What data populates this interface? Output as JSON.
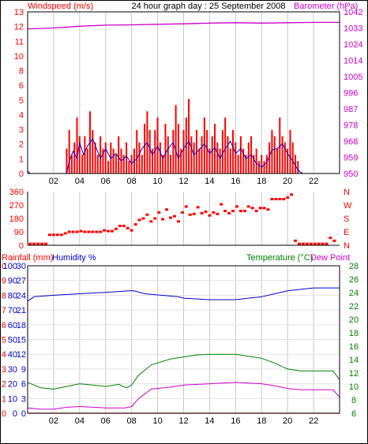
{
  "colors": {
    "red": "#ff0000",
    "blue": "#0000cc",
    "magenta": "#cc00cc",
    "green": "#008000",
    "grid": "#c8c8c8",
    "frame": "#000000"
  },
  "header": {
    "left_label": "Windspeed (m/s)",
    "title": "24 hour graph day : 25 September 2008",
    "right_label": "Barometer (hPa)"
  },
  "bottom_header": {
    "rainfall_label": "Rainfall (mm)",
    "humidity_label": "Humidity %",
    "temperature_label": "Temperature (°C)",
    "dewpoint_label": "Dew Point"
  },
  "chart_data": [
    {
      "id": "wind",
      "type": "line",
      "x_ticks": [
        "02",
        "04",
        "06",
        "08",
        "10",
        "12",
        "14",
        "16",
        "18",
        "20",
        "22"
      ],
      "xlim": [
        0,
        24
      ],
      "left_axis": {
        "label": "Windspeed (m/s)",
        "ticks": [
          "0",
          "1",
          "2",
          "3",
          "4",
          "5",
          "6",
          "8",
          "10",
          "11",
          "12",
          "13"
        ],
        "ylim": [
          0,
          13
        ]
      },
      "right_axis": {
        "label": "Barometer (hPa)",
        "ticks": [
          "950",
          "959",
          "968",
          "978",
          "987",
          "996",
          "1005",
          "1014",
          "1024",
          "1033",
          "1042"
        ],
        "ylim": [
          950,
          1042
        ]
      },
      "gust_bars_x": [
        3.0,
        3.2,
        3.4,
        3.6,
        3.8,
        4.0,
        4.2,
        4.4,
        4.6,
        4.8,
        5.0,
        5.2,
        5.4,
        5.6,
        5.8,
        6.0,
        6.2,
        6.4,
        6.6,
        6.8,
        7.0,
        7.2,
        7.4,
        7.6,
        7.8,
        8.0,
        8.2,
        8.4,
        8.6,
        8.8,
        9.0,
        9.2,
        9.4,
        9.6,
        9.8,
        10.0,
        10.2,
        10.4,
        10.6,
        10.8,
        11.0,
        11.2,
        11.4,
        11.6,
        11.8,
        12.0,
        12.2,
        12.4,
        12.6,
        12.8,
        13.0,
        13.2,
        13.4,
        13.6,
        13.8,
        14.0,
        14.2,
        14.4,
        14.6,
        14.8,
        15.0,
        15.2,
        15.4,
        15.6,
        15.8,
        16.0,
        16.2,
        16.4,
        16.6,
        16.8,
        17.0,
        17.2,
        17.4,
        17.6,
        17.8,
        18.0,
        18.2,
        18.4,
        18.6,
        18.8,
        19.0,
        19.2,
        19.4,
        19.6,
        19.8,
        20.0,
        20.2,
        20.4,
        20.6,
        20.8
      ],
      "gust_values": [
        2.0,
        3.5,
        1.5,
        2.5,
        4.5,
        3.0,
        1.5,
        3.0,
        2.0,
        5.0,
        3.5,
        2.5,
        1.5,
        3.0,
        2.0,
        2.5,
        1.0,
        2.5,
        2.0,
        1.5,
        3.0,
        2.0,
        1.5,
        2.5,
        1.0,
        1.5,
        2.0,
        3.5,
        2.5,
        1.5,
        4.0,
        5.0,
        3.5,
        2.0,
        3.5,
        4.5,
        2.5,
        1.5,
        4.0,
        3.0,
        1.5,
        3.5,
        5.5,
        4.0,
        2.0,
        3.5,
        4.5,
        6.0,
        3.0,
        2.5,
        3.5,
        2.0,
        3.0,
        4.5,
        3.5,
        2.0,
        3.0,
        4.0,
        2.5,
        2.0,
        3.5,
        4.5,
        3.0,
        2.0,
        3.5,
        2.5,
        1.5,
        3.0,
        2.0,
        1.5,
        2.5,
        3.0,
        1.5,
        2.0,
        1.0,
        1.5,
        1.0,
        1.5,
        2.5,
        3.5,
        3.0,
        2.0,
        4.5,
        3.0,
        2.5,
        2.0,
        3.5,
        2.5,
        1.5,
        1.0
      ],
      "wind_avg": [
        [
          0,
          0.2
        ],
        [
          0.2,
          0
        ],
        [
          3,
          0
        ],
        [
          3.2,
          1.0
        ],
        [
          3.5,
          1.8
        ],
        [
          3.8,
          1.2
        ],
        [
          4.0,
          2.5
        ],
        [
          4.3,
          1.5
        ],
        [
          4.6,
          2.2
        ],
        [
          5.0,
          2.8
        ],
        [
          5.3,
          2.0
        ],
        [
          5.6,
          1.2
        ],
        [
          6.0,
          2.0
        ],
        [
          6.4,
          1.2
        ],
        [
          6.8,
          1.6
        ],
        [
          7.2,
          1.0
        ],
        [
          7.6,
          1.4
        ],
        [
          8.0,
          0.8
        ],
        [
          8.4,
          1.2
        ],
        [
          8.8,
          2.0
        ],
        [
          9.2,
          2.5
        ],
        [
          9.6,
          1.5
        ],
        [
          10.0,
          2.2
        ],
        [
          10.4,
          1.2
        ],
        [
          10.8,
          2.0
        ],
        [
          11.2,
          2.5
        ],
        [
          11.6,
          1.2
        ],
        [
          12.0,
          2.0
        ],
        [
          12.4,
          2.6
        ],
        [
          12.8,
          1.5
        ],
        [
          13.2,
          1.9
        ],
        [
          13.6,
          2.4
        ],
        [
          14.0,
          1.6
        ],
        [
          14.4,
          2.1
        ],
        [
          14.8,
          1.2
        ],
        [
          15.2,
          2.0
        ],
        [
          15.6,
          2.6
        ],
        [
          16.0,
          1.6
        ],
        [
          16.4,
          2.0
        ],
        [
          16.8,
          1.2
        ],
        [
          17.2,
          1.5
        ],
        [
          17.6,
          0.8
        ],
        [
          18.0,
          0.5
        ],
        [
          18.4,
          0.9
        ],
        [
          18.8,
          1.9
        ],
        [
          19.2,
          2.0
        ],
        [
          19.6,
          2.4
        ],
        [
          20.0,
          1.6
        ],
        [
          20.4,
          1.0
        ],
        [
          20.8,
          0.3
        ],
        [
          21.0,
          0.1
        ],
        [
          21.2,
          0
        ]
      ],
      "barometer": [
        [
          0,
          1032.3
        ],
        [
          2,
          1032.8
        ],
        [
          4,
          1033.8
        ],
        [
          6,
          1034.4
        ],
        [
          8,
          1034.6
        ],
        [
          10,
          1034.9
        ],
        [
          12,
          1035.2
        ],
        [
          14,
          1035.6
        ],
        [
          16,
          1035.8
        ],
        [
          18,
          1035.6
        ],
        [
          20,
          1035.8
        ],
        [
          22,
          1036.0
        ],
        [
          24,
          1036.0
        ]
      ]
    },
    {
      "id": "direction",
      "type": "scatter",
      "x_ticks": [],
      "xlim": [
        0,
        24
      ],
      "left_axis": {
        "label": "",
        "ticks": [
          "0",
          "90",
          "180",
          "270",
          "360"
        ],
        "ylim": [
          0,
          360
        ]
      },
      "right_axis": {
        "label": "",
        "ticks": [
          "N",
          "E",
          "S",
          "W",
          "N"
        ],
        "ylim": [
          0,
          360
        ]
      },
      "points": [
        [
          0.2,
          10
        ],
        [
          0.5,
          10
        ],
        [
          0.8,
          10
        ],
        [
          1.1,
          10
        ],
        [
          1.4,
          10
        ],
        [
          1.7,
          70
        ],
        [
          2.0,
          70
        ],
        [
          2.3,
          70
        ],
        [
          2.6,
          70
        ],
        [
          2.9,
          80
        ],
        [
          3.2,
          90
        ],
        [
          3.5,
          90
        ],
        [
          3.8,
          90
        ],
        [
          4.1,
          95
        ],
        [
          4.4,
          90
        ],
        [
          4.7,
          90
        ],
        [
          5.0,
          90
        ],
        [
          5.3,
          90
        ],
        [
          5.6,
          90
        ],
        [
          5.9,
          100
        ],
        [
          6.2,
          95
        ],
        [
          6.5,
          95
        ],
        [
          6.8,
          110
        ],
        [
          7.1,
          130
        ],
        [
          7.4,
          130
        ],
        [
          7.7,
          115
        ],
        [
          8.0,
          100
        ],
        [
          8.3,
          140
        ],
        [
          8.6,
          170
        ],
        [
          8.9,
          180
        ],
        [
          9.2,
          205
        ],
        [
          9.5,
          160
        ],
        [
          9.8,
          180
        ],
        [
          10.1,
          220
        ],
        [
          10.4,
          175
        ],
        [
          10.7,
          240
        ],
        [
          11.0,
          185
        ],
        [
          11.3,
          195
        ],
        [
          11.6,
          160
        ],
        [
          11.9,
          220
        ],
        [
          12.2,
          260
        ],
        [
          12.5,
          205
        ],
        [
          12.8,
          210
        ],
        [
          13.1,
          255
        ],
        [
          13.4,
          215
        ],
        [
          13.7,
          225
        ],
        [
          14.0,
          200
        ],
        [
          14.3,
          220
        ],
        [
          14.6,
          210
        ],
        [
          14.9,
          275
        ],
        [
          15.2,
          230
        ],
        [
          15.5,
          215
        ],
        [
          15.8,
          230
        ],
        [
          16.1,
          260
        ],
        [
          16.4,
          230
        ],
        [
          16.7,
          230
        ],
        [
          17.0,
          260
        ],
        [
          17.3,
          250
        ],
        [
          17.6,
          230
        ],
        [
          17.9,
          250
        ],
        [
          18.2,
          250
        ],
        [
          18.5,
          240
        ],
        [
          18.8,
          310
        ],
        [
          19.1,
          310
        ],
        [
          19.4,
          310
        ],
        [
          19.7,
          310
        ],
        [
          20.0,
          320
        ],
        [
          20.3,
          340
        ],
        [
          20.6,
          30
        ],
        [
          20.9,
          10
        ],
        [
          21.2,
          10
        ],
        [
          21.5,
          10
        ],
        [
          21.8,
          10
        ],
        [
          22.1,
          10
        ],
        [
          22.4,
          10
        ],
        [
          22.7,
          10
        ],
        [
          23.0,
          10
        ],
        [
          23.3,
          50
        ],
        [
          23.6,
          30
        ]
      ]
    },
    {
      "id": "temp",
      "type": "line",
      "x_ticks": [
        "02",
        "04",
        "06",
        "08",
        "10",
        "12",
        "14",
        "16",
        "18",
        "20",
        "22"
      ],
      "xlim": [
        0,
        24
      ],
      "left_axis": {
        "label": "Rainfall (mm)",
        "ticks": [
          "0",
          "1",
          "2",
          "3",
          "4",
          "5",
          "6",
          "7",
          "8",
          "9",
          "10"
        ],
        "ylim": [
          0,
          10
        ]
      },
      "left2_axis": {
        "label": "Humidity %",
        "ticks": [
          "0",
          "10",
          "20",
          "30",
          "40",
          "50",
          "60",
          "70",
          "80",
          "90",
          "100"
        ],
        "ylim": [
          0,
          100
        ]
      },
      "left3_ticks": [
        "0",
        "3",
        "6",
        "9",
        "12",
        "15",
        "18",
        "21",
        "24",
        "27",
        "30"
      ],
      "right_axis": {
        "label": "Temperature (°C)",
        "ticks": [
          "6",
          "8",
          "10",
          "12",
          "14",
          "16",
          "18",
          "20",
          "22",
          "24",
          "26",
          "28"
        ],
        "ylim": [
          6,
          28
        ]
      },
      "humidity": [
        [
          0,
          76
        ],
        [
          0.5,
          79
        ],
        [
          2,
          80
        ],
        [
          4,
          81
        ],
        [
          6,
          82
        ],
        [
          7.8,
          83
        ],
        [
          8.2,
          83
        ],
        [
          9,
          81
        ],
        [
          11.6,
          79
        ],
        [
          12,
          78
        ],
        [
          14,
          77
        ],
        [
          16,
          77
        ],
        [
          17,
          78
        ],
        [
          18,
          79
        ],
        [
          20,
          83
        ],
        [
          22,
          85
        ],
        [
          24,
          85
        ]
      ],
      "temperature": [
        [
          0,
          10.6
        ],
        [
          1,
          9.8
        ],
        [
          2,
          9.6
        ],
        [
          3,
          10.0
        ],
        [
          4,
          10.4
        ],
        [
          5,
          10.2
        ],
        [
          6,
          10.0
        ],
        [
          7,
          10.3
        ],
        [
          7.6,
          9.8
        ],
        [
          8,
          10.2
        ],
        [
          8.5,
          11.6
        ],
        [
          9.5,
          13.2
        ],
        [
          11,
          14.1
        ],
        [
          12,
          14.4
        ],
        [
          13,
          14.7
        ],
        [
          14,
          14.8
        ],
        [
          15,
          14.8
        ],
        [
          16,
          14.8
        ],
        [
          17,
          14.5
        ],
        [
          18,
          14.2
        ],
        [
          19,
          13.5
        ],
        [
          20,
          12.6
        ],
        [
          21,
          12.3
        ],
        [
          22,
          12.3
        ],
        [
          23.5,
          12.3
        ],
        [
          24,
          11.0
        ]
      ],
      "dewpoint": [
        [
          0,
          6.8
        ],
        [
          1,
          6.6
        ],
        [
          2,
          6.6
        ],
        [
          3,
          6.9
        ],
        [
          4,
          7.0
        ],
        [
          5,
          6.9
        ],
        [
          6,
          6.8
        ],
        [
          7.5,
          6.8
        ],
        [
          8,
          7.0
        ],
        [
          8.5,
          8.1
        ],
        [
          9.5,
          9.6
        ],
        [
          11,
          9.9
        ],
        [
          12,
          10.2
        ],
        [
          14,
          10.4
        ],
        [
          16,
          10.6
        ],
        [
          17,
          10.5
        ],
        [
          18,
          10.4
        ],
        [
          19,
          10.1
        ],
        [
          20,
          9.7
        ],
        [
          21,
          9.5
        ],
        [
          22,
          9.5
        ],
        [
          23.5,
          9.5
        ],
        [
          24,
          8.4
        ]
      ],
      "rainfall": [
        [
          0,
          0
        ],
        [
          24,
          0
        ]
      ]
    }
  ]
}
